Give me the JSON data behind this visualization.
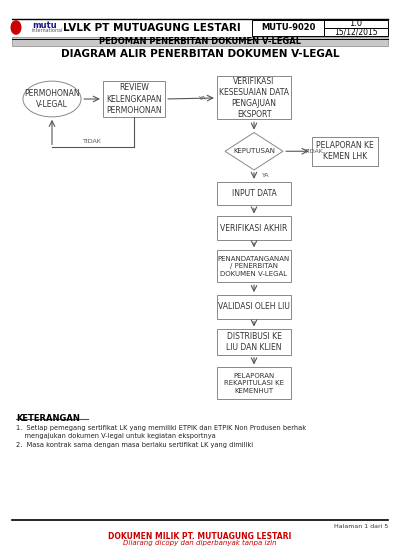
{
  "bg_color": "#ffffff",
  "title_text": "LVLK PT MUTUAGUNG LESTARI",
  "subtitle_bar_text": "PEDOMAN PENERBITAN DOKUMEN V-LEGAL",
  "subtitle_bar_bg": "#c8c8c8",
  "doc_title": "DIAGRAM ALIR PENERBITAN DOKUMEN V-LEGAL",
  "doc_code": "MUTU-9020",
  "doc_version": "1.0",
  "doc_date": "15/12/2015",
  "keterangan_title": "KETERANGAN",
  "note1": "1.  Setiap pemegang sertifikat LK yang memiliki ETPIK dan ETPIK Non Produsen berhak\n    mengajukan dokumen V-legal untuk kegiatan eksportnya",
  "note2": "2.  Masa kontrak sama dengan masa berlaku sertifikat LK yang dimiliki",
  "footer_text": "Halaman 1 dari 5",
  "footer_red_text1": "DOKUMEN MILIK PT. MUTUAGUNG LESTARI",
  "footer_red_text2": "Dilarang dicopy dan diperbanyak tanpa izin",
  "box_edge_color": "#888888",
  "box_fill_color": "#ffffff",
  "text_color": "#333333"
}
